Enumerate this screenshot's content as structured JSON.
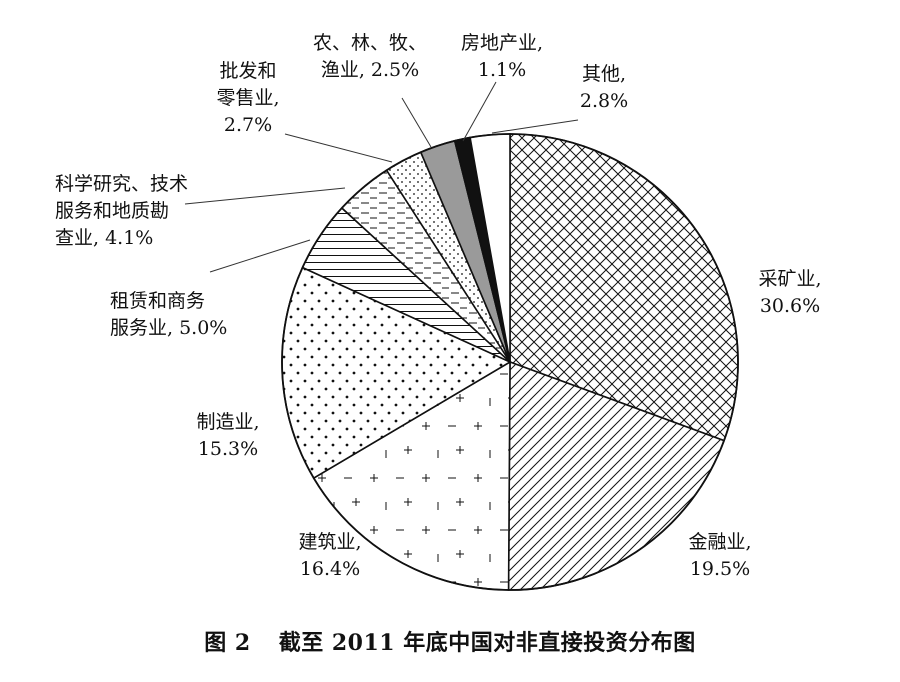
{
  "chart_data": {
    "type": "pie",
    "title": "",
    "categories": [
      "采矿业",
      "金融业",
      "建筑业",
      "制造业",
      "租赁和商务服务业",
      "科学研究、技术服务和地质勘查业",
      "批发和零售业",
      "农、林、牧、渔业",
      "房地产业",
      "其他"
    ],
    "values": [
      30.6,
      19.5,
      16.4,
      15.3,
      5.0,
      4.1,
      2.7,
      2.5,
      1.1,
      2.8
    ],
    "unit": "%",
    "labels": [
      {
        "lines": [
          "采矿业,",
          "30.6%"
        ]
      },
      {
        "lines": [
          "金融业,",
          "19.5%"
        ]
      },
      {
        "lines": [
          "建筑业,",
          "16.4%"
        ]
      },
      {
        "lines": [
          "制造业,",
          "15.3%"
        ]
      },
      {
        "lines": [
          "租赁和商务",
          "服务业, 5.0%"
        ]
      },
      {
        "lines": [
          "科学研究、技术",
          "服务和地质勘",
          "查业, 4.1%"
        ]
      },
      {
        "lines": [
          "批发和",
          "零售业,",
          "2.7%"
        ]
      },
      {
        "lines": [
          "农、林、牧、",
          "渔业, 2.5%"
        ]
      },
      {
        "lines": [
          "房地产业,",
          "1.1%"
        ]
      },
      {
        "lines": [
          "其他,",
          "2.8%"
        ]
      }
    ],
    "fills": [
      "crosshatch",
      "diagonal-lines",
      "plus-minus-marks",
      "dot-grid",
      "horizontal-lines",
      "horizontal-dashes",
      "dotted-diagonal",
      "gray",
      "black",
      "white"
    ],
    "colors": {
      "gray": "#9a9a9a",
      "black": "#111111",
      "white": "#ffffff",
      "ink": "#111111"
    },
    "legend": "none"
  },
  "caption": {
    "figure_number": "图 2",
    "text": "截至 2011 年底中国对非直接投资分布图"
  }
}
